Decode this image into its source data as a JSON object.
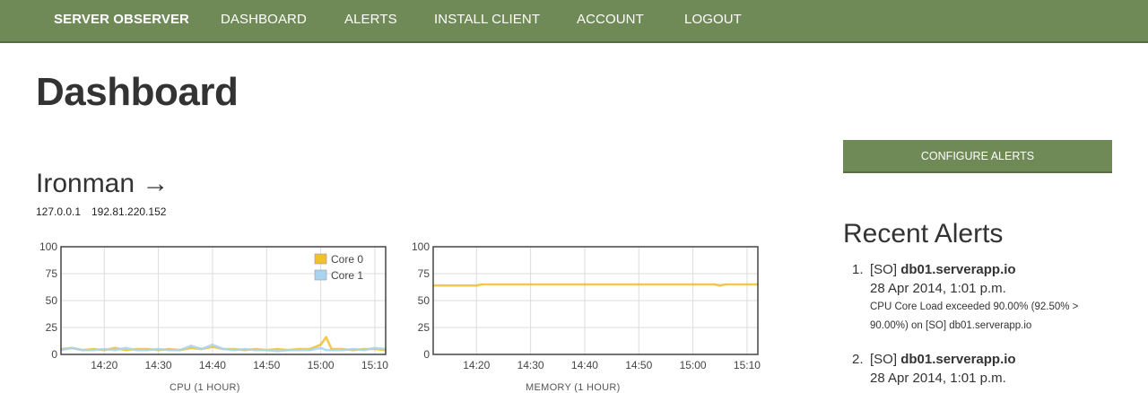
{
  "nav": {
    "brand": "SERVER OBSERVER",
    "items": [
      "DASHBOARD",
      "ALERTS",
      "INSTALL CLIENT",
      "ACCOUNT",
      "LOGOUT"
    ]
  },
  "page": {
    "title": "Dashboard"
  },
  "server": {
    "name": "Ironman →",
    "ips": [
      "127.0.0.1",
      "192.81.220.152"
    ]
  },
  "buttons": {
    "configure_alerts": "CONFIGURE ALERTS"
  },
  "recent_alerts": {
    "title": "Recent Alerts",
    "items": [
      {
        "number": "1.",
        "prefix": "[SO]",
        "host": "db01.serverapp.io",
        "time": "28 Apr 2014, 1:01 p.m.",
        "message": "CPU Core Load exceeded 90.00% (92.50% > 90.00%) on [SO] db01.serverapp.io"
      },
      {
        "number": "2.",
        "prefix": "[SO]",
        "host": "db01.serverapp.io",
        "time": "28 Apr 2014, 1:01 p.m.",
        "message": ""
      }
    ]
  },
  "colors": {
    "nav": "#6f8a56",
    "core0": "#f0c030",
    "core1": "#a8d4f2",
    "memory": "#f0c030"
  },
  "chart_data": [
    {
      "type": "line",
      "caption": "CPU (1 HOUR)",
      "x_ticks": [
        "14:20",
        "14:30",
        "14:40",
        "14:50",
        "15:00",
        "15:10"
      ],
      "y_ticks": [
        0,
        25,
        50,
        75,
        100
      ],
      "ylim": [
        0,
        100
      ],
      "xlim": [
        "14:12",
        "15:12"
      ],
      "legend_position": "top-right",
      "grid": true,
      "series": [
        {
          "name": "Core 0",
          "x": [
            "14:12",
            "14:14",
            "14:16",
            "14:18",
            "14:20",
            "14:22",
            "14:24",
            "14:26",
            "14:28",
            "14:30",
            "14:32",
            "14:34",
            "14:36",
            "14:38",
            "14:40",
            "14:42",
            "14:44",
            "14:46",
            "14:48",
            "14:50",
            "14:52",
            "14:54",
            "14:56",
            "14:58",
            "15:00",
            "15:01",
            "15:02",
            "15:04",
            "15:06",
            "15:08",
            "15:10",
            "15:12"
          ],
          "values": [
            5,
            6,
            4,
            5,
            4,
            6,
            4,
            5,
            5,
            4,
            5,
            4,
            6,
            5,
            7,
            5,
            5,
            4,
            5,
            4,
            5,
            4,
            5,
            5,
            9,
            16,
            5,
            5,
            4,
            5,
            5,
            4
          ]
        },
        {
          "name": "Core 1",
          "x": [
            "14:12",
            "14:14",
            "14:16",
            "14:18",
            "14:20",
            "14:22",
            "14:24",
            "14:26",
            "14:28",
            "14:30",
            "14:32",
            "14:34",
            "14:36",
            "14:38",
            "14:40",
            "14:42",
            "14:44",
            "14:46",
            "14:48",
            "14:50",
            "14:52",
            "14:54",
            "14:56",
            "14:58",
            "15:00",
            "15:01",
            "15:02",
            "15:04",
            "15:06",
            "15:08",
            "15:10",
            "15:12"
          ],
          "values": [
            4,
            6,
            4,
            4,
            5,
            4,
            6,
            4,
            4,
            5,
            4,
            4,
            8,
            5,
            9,
            5,
            4,
            5,
            4,
            4,
            3,
            4,
            4,
            4,
            6,
            4,
            4,
            4,
            5,
            4,
            6,
            5
          ]
        }
      ]
    },
    {
      "type": "line",
      "caption": "MEMORY (1 HOUR)",
      "x_ticks": [
        "14:20",
        "14:30",
        "14:40",
        "14:50",
        "15:00",
        "15:10"
      ],
      "y_ticks": [
        0,
        25,
        50,
        75,
        100
      ],
      "ylim": [
        0,
        100
      ],
      "xlim": [
        "14:12",
        "15:12"
      ],
      "grid": true,
      "series": [
        {
          "name": "Memory",
          "x": [
            "14:12",
            "14:20",
            "14:21",
            "14:30",
            "14:40",
            "14:50",
            "15:00",
            "15:04",
            "15:05",
            "15:06",
            "15:12"
          ],
          "values": [
            64,
            64,
            65,
            65,
            65,
            65,
            65,
            65,
            64,
            65,
            65
          ]
        }
      ]
    }
  ]
}
